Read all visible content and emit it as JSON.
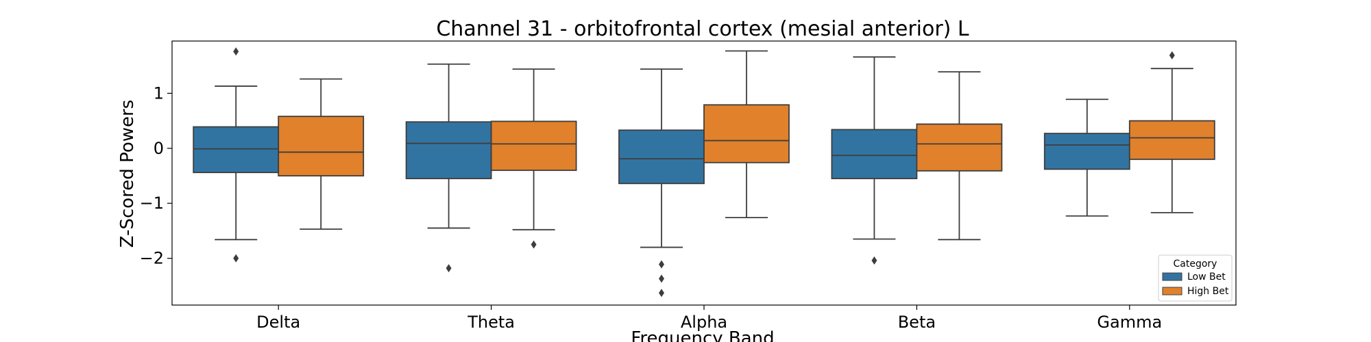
{
  "chart_data": {
    "type": "box",
    "title": "Channel 31 - orbitofrontal cortex (mesial anterior) L",
    "xlabel": "Frequency Band",
    "ylabel": "Z-Scored Powers",
    "categories": [
      "Delta",
      "Theta",
      "Alpha",
      "Beta",
      "Gamma"
    ],
    "yticks": [
      1,
      0,
      -1,
      -2
    ],
    "ytick_labels": [
      "1",
      "0",
      "−1",
      "−2"
    ],
    "ylim": [
      -2.85,
      1.95
    ],
    "grid": false,
    "legend": {
      "title": "Category",
      "placement": "bottom-right"
    },
    "series": [
      {
        "name": "Low Bet",
        "color": "#3274a1",
        "boxes": [
          {
            "whisker_low": -1.66,
            "q1": -0.44,
            "median": -0.01,
            "q3": 0.39,
            "whisker_high": 1.13,
            "outliers": [
              1.76,
              -2.0
            ]
          },
          {
            "whisker_low": -1.45,
            "q1": -0.55,
            "median": 0.09,
            "q3": 0.48,
            "whisker_high": 1.53,
            "outliers": [
              -2.18
            ]
          },
          {
            "whisker_low": -1.8,
            "q1": -0.64,
            "median": -0.19,
            "q3": 0.33,
            "whisker_high": 1.44,
            "outliers": [
              -2.11,
              -2.37,
              -2.63
            ]
          },
          {
            "whisker_low": -1.65,
            "q1": -0.55,
            "median": -0.13,
            "q3": 0.34,
            "whisker_high": 1.66,
            "outliers": [
              -2.04
            ]
          },
          {
            "whisker_low": -1.23,
            "q1": -0.38,
            "median": 0.06,
            "q3": 0.27,
            "whisker_high": 0.89,
            "outliers": []
          }
        ]
      },
      {
        "name": "High Bet",
        "color": "#e1812c",
        "boxes": [
          {
            "whisker_low": -1.47,
            "q1": -0.5,
            "median": -0.07,
            "q3": 0.58,
            "whisker_high": 1.26,
            "outliers": []
          },
          {
            "whisker_low": -1.48,
            "q1": -0.4,
            "median": 0.08,
            "q3": 0.49,
            "whisker_high": 1.44,
            "outliers": [
              -1.75
            ]
          },
          {
            "whisker_low": -1.26,
            "q1": -0.26,
            "median": 0.14,
            "q3": 0.79,
            "whisker_high": 1.77,
            "outliers": []
          },
          {
            "whisker_low": -1.66,
            "q1": -0.41,
            "median": 0.08,
            "q3": 0.44,
            "whisker_high": 1.39,
            "outliers": []
          },
          {
            "whisker_low": -1.17,
            "q1": -0.2,
            "median": 0.19,
            "q3": 0.5,
            "whisker_high": 1.45,
            "outliers": [
              1.69
            ]
          }
        ]
      }
    ]
  }
}
